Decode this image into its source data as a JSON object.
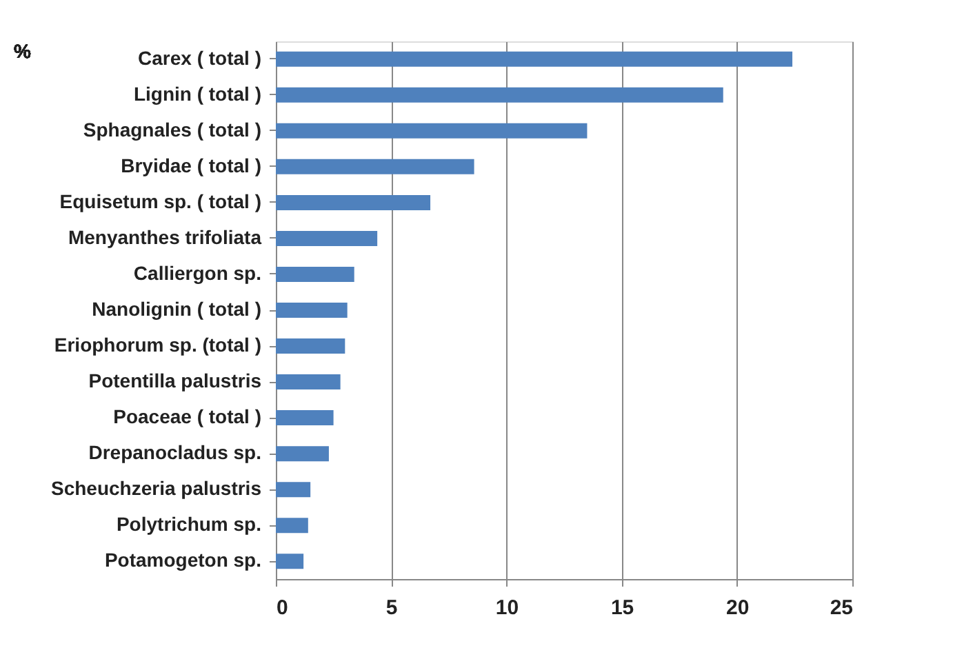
{
  "chart_data": {
    "type": "bar",
    "orientation": "horizontal",
    "ylabel": "%",
    "categories": [
      "Carex ( total )",
      "Lignin ( total )",
      "Sphagnales ( total )",
      "Bryidae ( total )",
      "Equisetum sp. ( total )",
      "Menyanthes trifoliata",
      "Calliergon sp.",
      "Nanolignin ( total )",
      "Eriophorum sp. (total )",
      "Potentilla palustris",
      "Poaceae ( total )",
      "Drepanocladus sp.",
      "Scheuchzeria palustris",
      "Polytrichum sp.",
      "Potamogeton sp."
    ],
    "values": [
      22.4,
      19.4,
      13.5,
      8.6,
      6.7,
      4.4,
      3.4,
      3.1,
      3.0,
      2.8,
      2.5,
      2.3,
      1.5,
      1.4,
      1.2
    ],
    "color": "#4f81bd",
    "xlim": [
      0,
      25
    ],
    "xticks": [
      0,
      5,
      10,
      15,
      20,
      25
    ],
    "grid": "x"
  }
}
